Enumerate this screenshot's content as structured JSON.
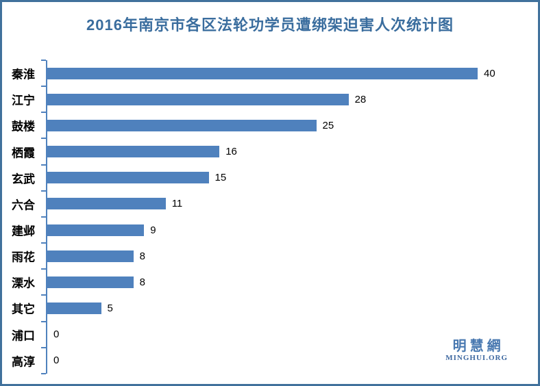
{
  "frame": {
    "border_color": "#41719C",
    "background_color": "#FFFFFF"
  },
  "chart_data": {
    "type": "bar",
    "orientation": "horizontal",
    "title": "2016年南京市各区法轮功学员遭绑架迫害人次统计图",
    "categories": [
      "秦淮",
      "江宁",
      "鼓楼",
      "栖霞",
      "玄武",
      "六合",
      "建邺",
      "雨花",
      "溧水",
      "其它",
      "浦口",
      "高淳"
    ],
    "values": [
      40,
      28,
      25,
      16,
      15,
      11,
      9,
      8,
      8,
      5,
      0,
      0
    ],
    "xlabel": "",
    "ylabel": "",
    "xlim": [
      0,
      40
    ],
    "grid": false,
    "legend": false,
    "value_labels_shown": true,
    "bar_color": "#4F81BD",
    "axis_color": "#4F81BD",
    "title_color": "#3A6D9E",
    "value_label_color": "#000000"
  },
  "watermark": {
    "cjk": "明慧網",
    "latin": "MINGHUI.ORG",
    "color": "#4878B0"
  }
}
